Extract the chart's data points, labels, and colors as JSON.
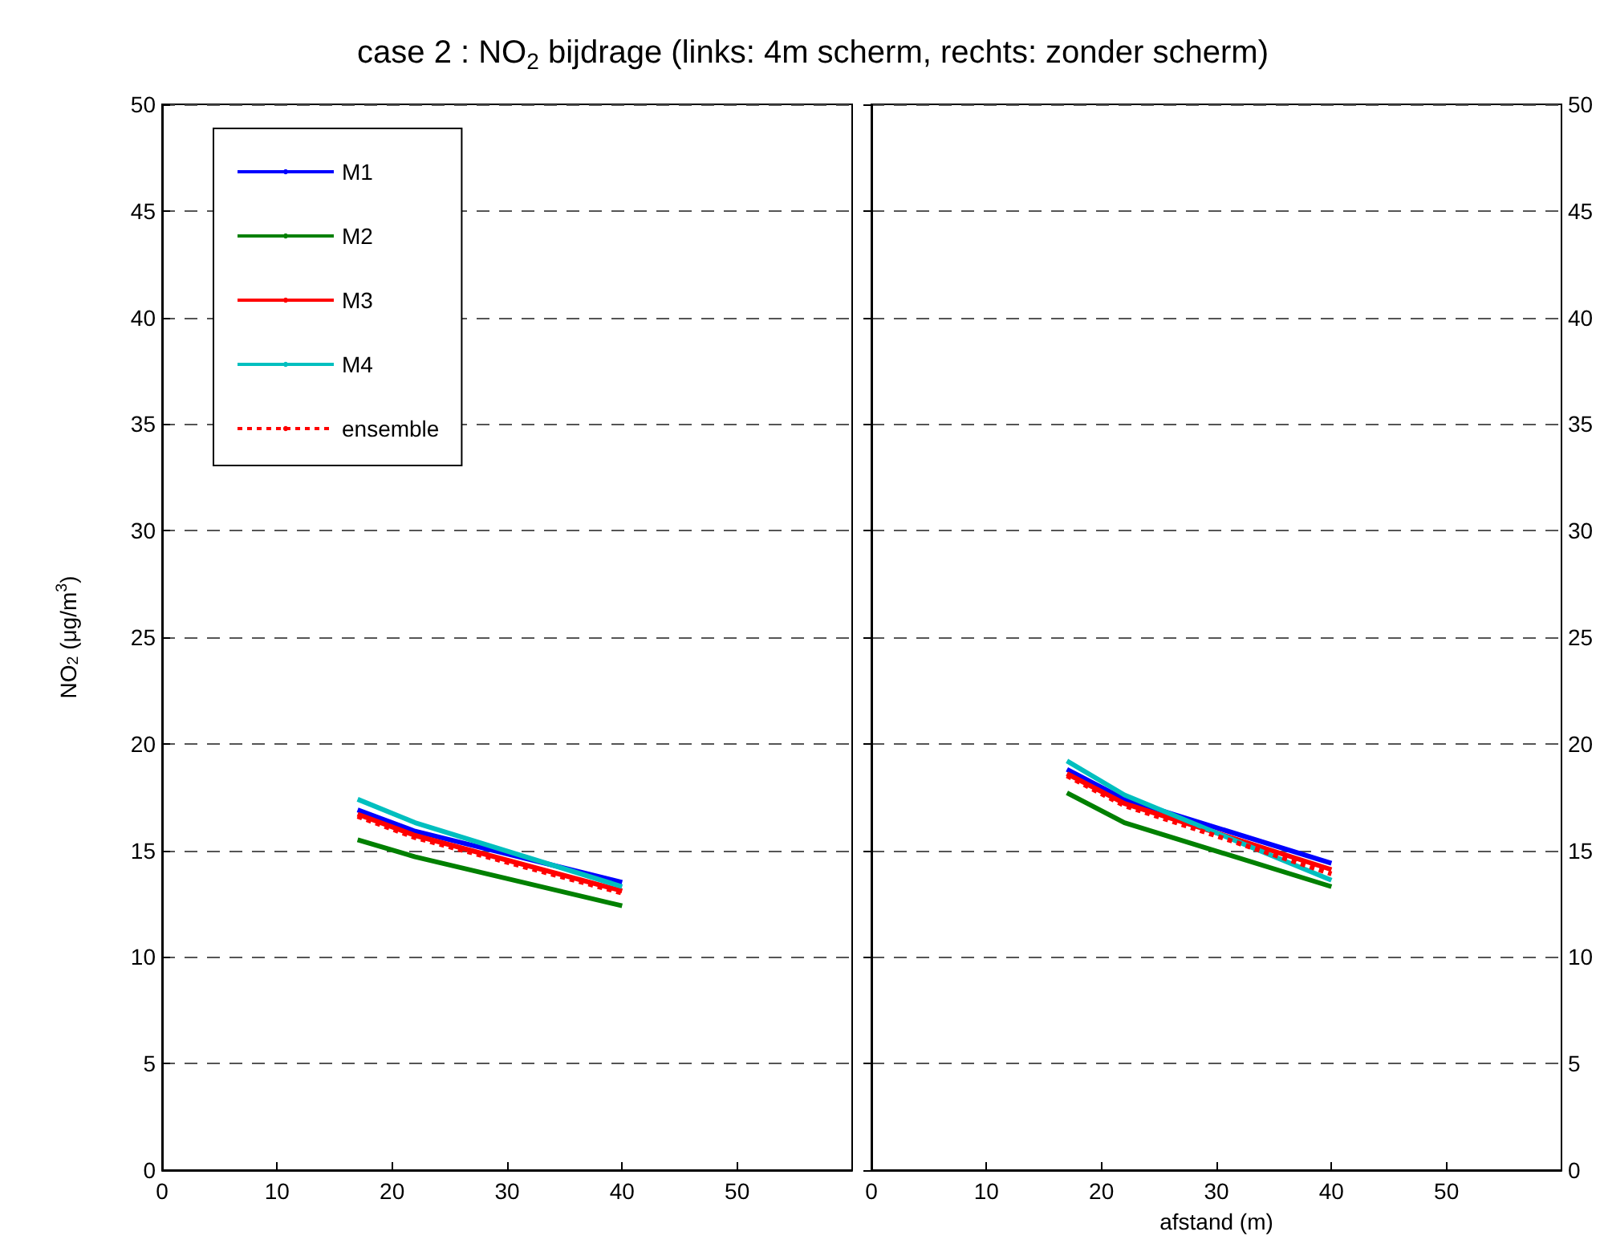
{
  "chart_data": [
    {
      "type": "line",
      "title": "case 2 : NO$_{2}$ bijdrage (links: 4m scherm, rechts: zonder scherm)",
      "ylabel": "NO$_{2}$ (μg/m$^{3}$)",
      "x": [
        17,
        22,
        40
      ],
      "series": [
        {
          "name": "M1",
          "color": "#0000ff",
          "values": [
            16.9,
            15.9,
            13.5
          ]
        },
        {
          "name": "M2",
          "color": "#008000",
          "values": [
            15.5,
            14.7,
            12.4
          ]
        },
        {
          "name": "M3",
          "color": "#ff0000",
          "values": [
            16.7,
            15.7,
            13.1
          ]
        },
        {
          "name": "M4",
          "color": "#00bfbf",
          "values": [
            17.4,
            16.3,
            13.3
          ]
        },
        {
          "name": "ensemble",
          "color": "#ff0000",
          "values": [
            16.6,
            15.6,
            13.0
          ],
          "line_style": "dotted"
        }
      ],
      "xlim": [
        0,
        60
      ],
      "xticks": [
        0,
        10,
        20,
        30,
        40,
        50
      ],
      "ylim": [
        0,
        50
      ],
      "yticks": [
        0,
        5,
        10,
        15,
        20,
        25,
        30,
        35,
        40,
        45,
        50
      ],
      "grid": "y",
      "legend": "top left",
      "line_style": "solid",
      "marker": "none"
    },
    {
      "type": "line",
      "xlabel": "afstand (m)",
      "x": [
        17,
        22,
        40
      ],
      "series": [
        {
          "color": "#0000ff",
          "values": [
            18.8,
            17.4,
            14.4
          ]
        },
        {
          "color": "#008000",
          "values": [
            17.7,
            16.3,
            13.3
          ]
        },
        {
          "color": "#ff0000",
          "values": [
            18.6,
            17.2,
            14.1
          ]
        },
        {
          "color": "#00bfbf",
          "values": [
            19.2,
            17.6,
            13.6
          ]
        },
        {
          "color": "#ff0000",
          "values": [
            18.5,
            17.1,
            13.9
          ],
          "line_style": "dotted"
        }
      ],
      "xlim": [
        0,
        60
      ],
      "xticks": [
        0,
        10,
        20,
        30,
        40,
        50
      ],
      "ylim": [
        0,
        50
      ],
      "yticks": [
        0,
        5,
        10,
        15,
        20,
        25,
        30,
        35,
        40,
        45,
        50
      ],
      "grid": "y",
      "legend": false,
      "line_style": "solid",
      "marker": "none"
    }
  ]
}
